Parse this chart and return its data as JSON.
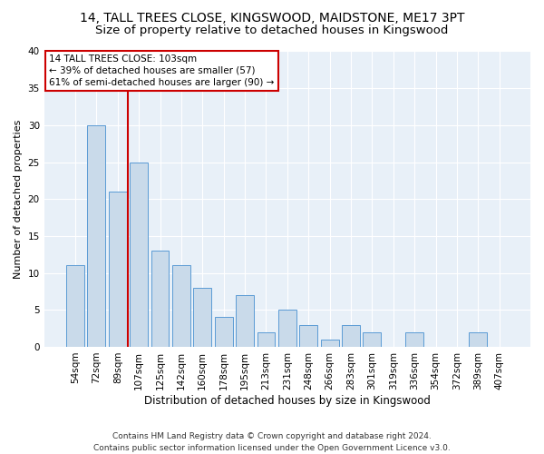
{
  "title1": "14, TALL TREES CLOSE, KINGSWOOD, MAIDSTONE, ME17 3PT",
  "title2": "Size of property relative to detached houses in Kingswood",
  "xlabel": "Distribution of detached houses by size in Kingswood",
  "ylabel": "Number of detached properties",
  "categories": [
    "54sqm",
    "72sqm",
    "89sqm",
    "107sqm",
    "125sqm",
    "142sqm",
    "160sqm",
    "178sqm",
    "195sqm",
    "213sqm",
    "231sqm",
    "248sqm",
    "266sqm",
    "283sqm",
    "301sqm",
    "319sqm",
    "336sqm",
    "354sqm",
    "372sqm",
    "389sqm",
    "407sqm"
  ],
  "values": [
    11,
    30,
    21,
    25,
    13,
    11,
    8,
    4,
    7,
    2,
    5,
    3,
    1,
    3,
    2,
    0,
    2,
    0,
    0,
    2,
    0
  ],
  "bar_color": "#c9daea",
  "bar_edge_color": "#5b9bd5",
  "vline_color": "#cc0000",
  "vline_x": 2.5,
  "annotation_text": "14 TALL TREES CLOSE: 103sqm\n← 39% of detached houses are smaller (57)\n61% of semi-detached houses are larger (90) →",
  "annotation_box_color": "#ffffff",
  "annotation_box_edge": "#cc0000",
  "ylim": [
    0,
    40
  ],
  "yticks": [
    0,
    5,
    10,
    15,
    20,
    25,
    30,
    35,
    40
  ],
  "footer": "Contains HM Land Registry data © Crown copyright and database right 2024.\nContains public sector information licensed under the Open Government Licence v3.0.",
  "background_color": "#e8f0f8",
  "grid_color": "#ffffff",
  "fig_bg_color": "#ffffff",
  "title1_fontsize": 10,
  "title2_fontsize": 9.5,
  "xlabel_fontsize": 8.5,
  "ylabel_fontsize": 8,
  "tick_fontsize": 7.5,
  "annotation_fontsize": 7.5,
  "footer_fontsize": 6.5
}
